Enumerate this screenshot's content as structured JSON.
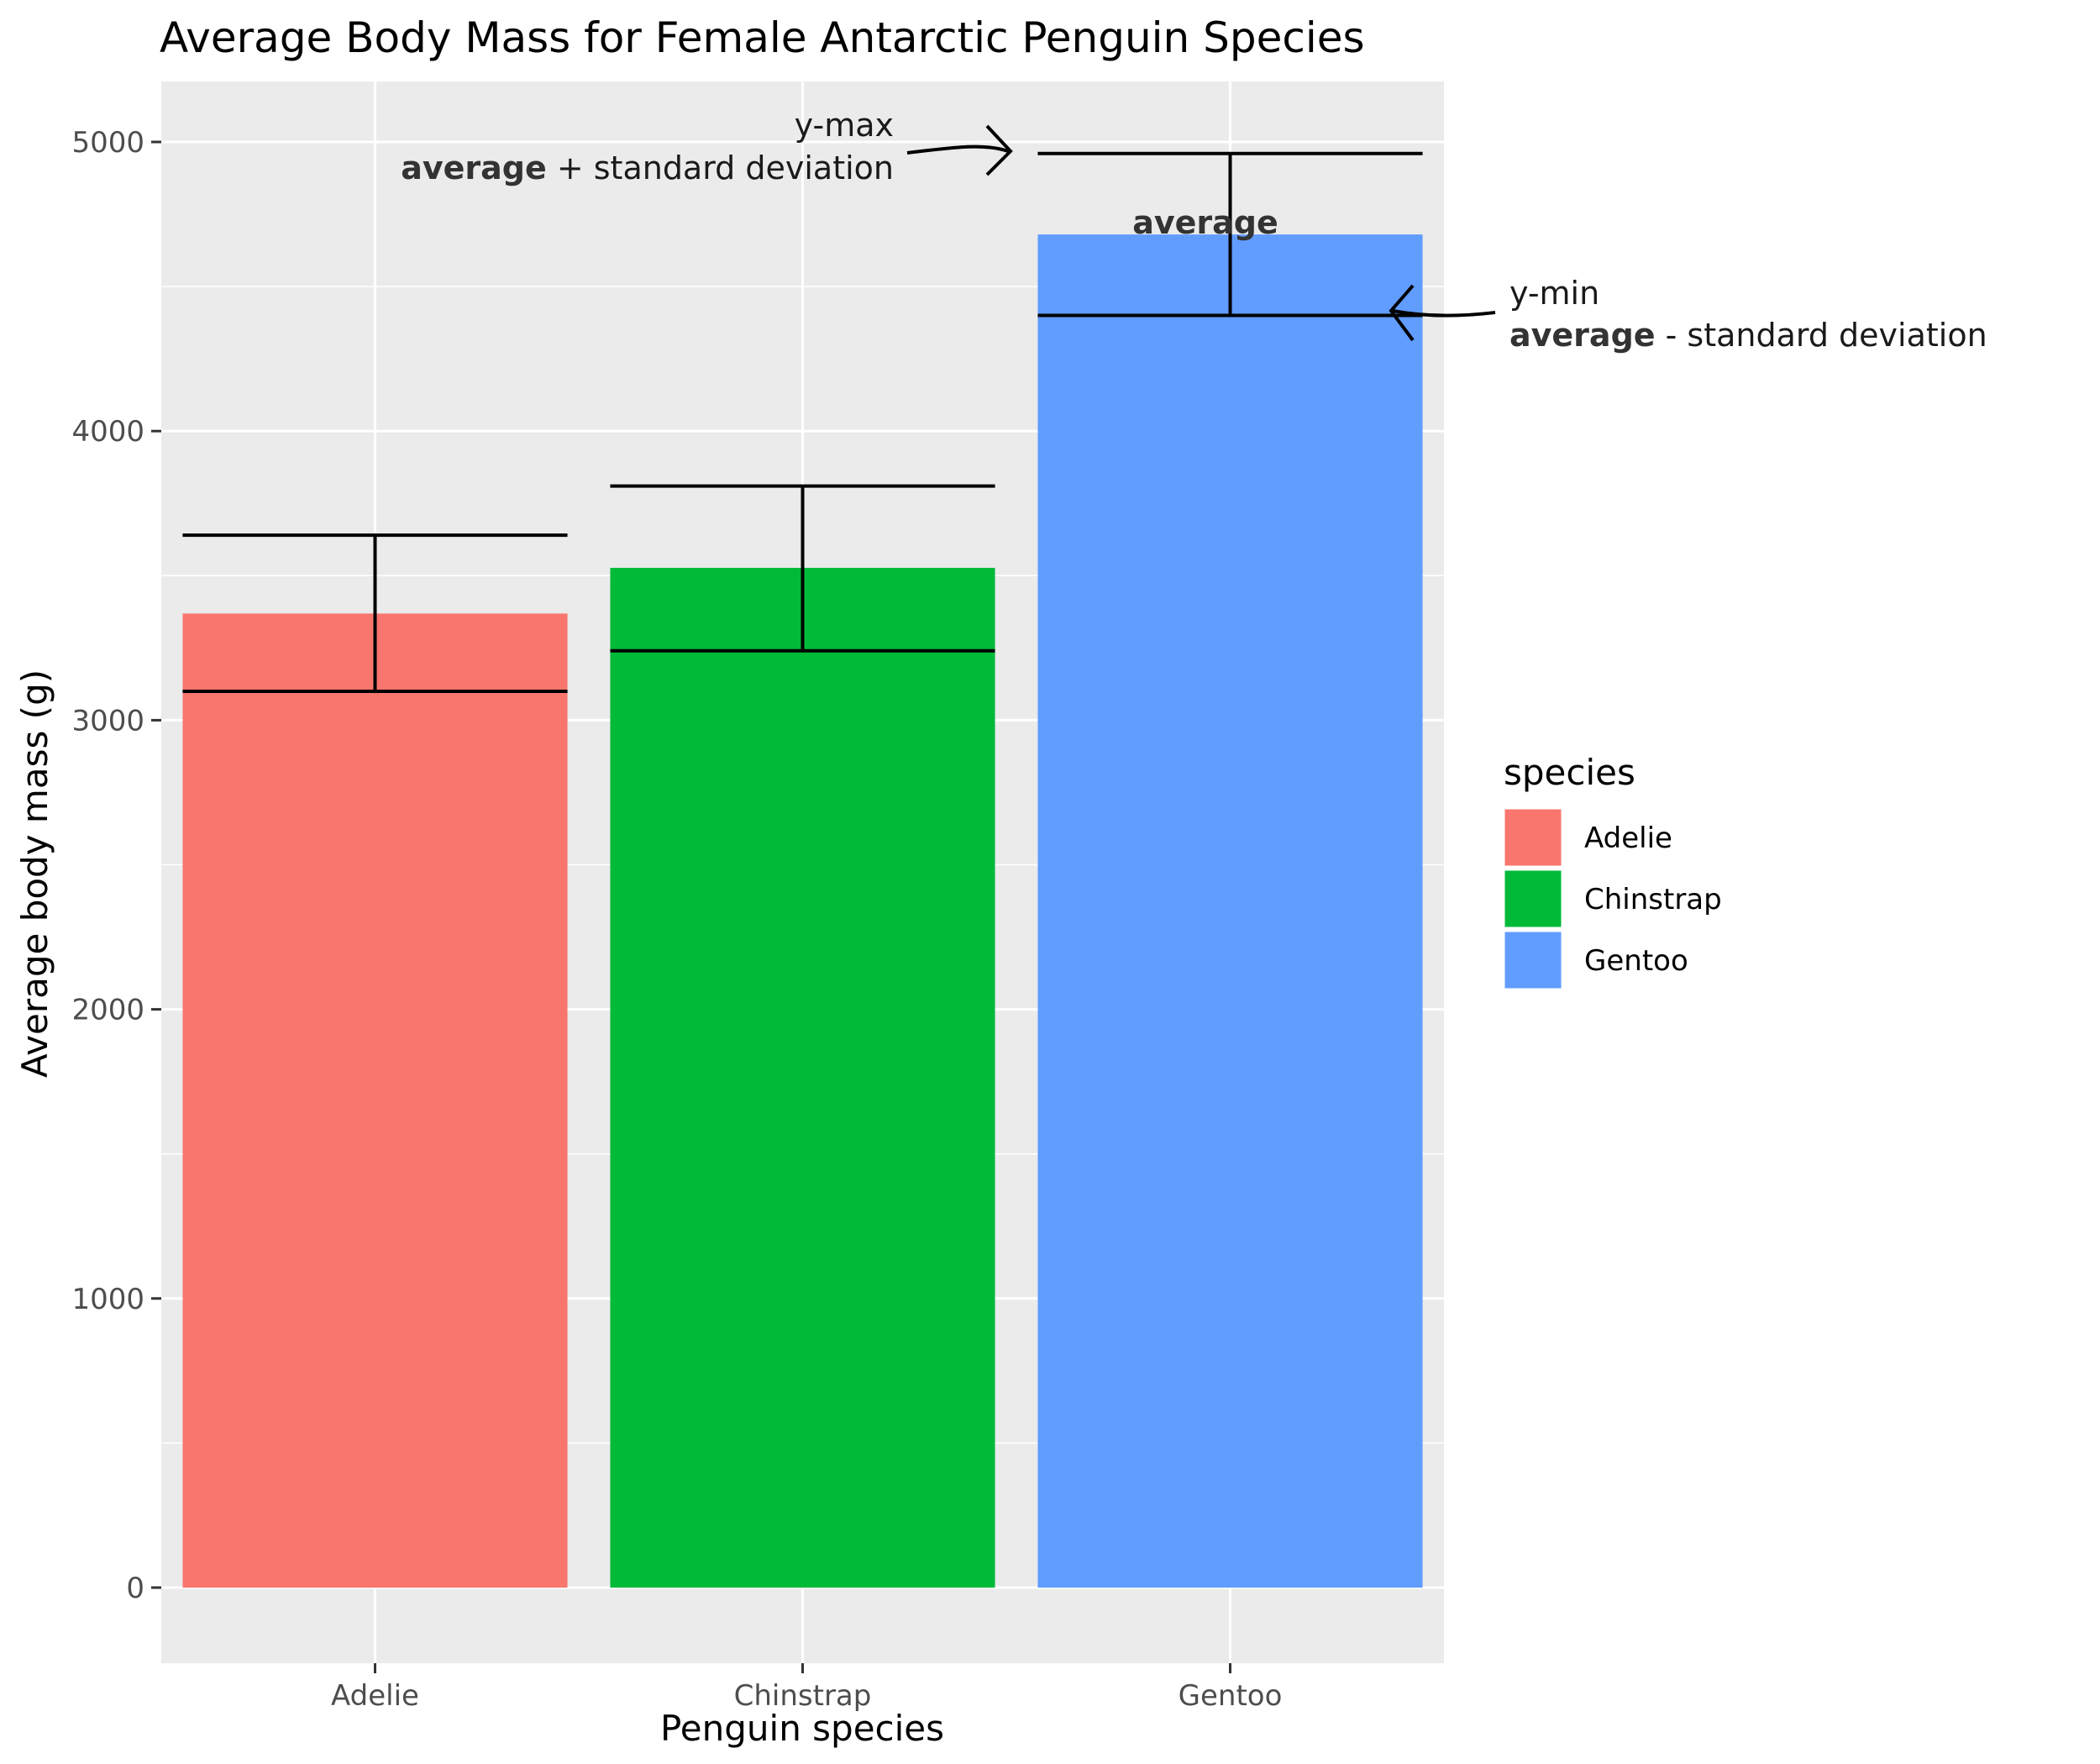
{
  "chart_data": {
    "type": "bar",
    "title": "Average Body Mass for Female Antarctic Penguin Species",
    "xlabel": "Penguin species",
    "ylabel": "Average body mass (g)",
    "categories": [
      "Adelie",
      "Chinstrap",
      "Gentoo"
    ],
    "values": [
      3369,
      3527,
      4680
    ],
    "error_bars": [
      {
        "ymin": 3100,
        "ymax": 3640
      },
      {
        "ymin": 3240,
        "ymax": 3810
      },
      {
        "ymin": 4400,
        "ymax": 4960
      }
    ],
    "colors": [
      "#F8766D",
      "#00BA38",
      "#619CFF"
    ],
    "ylim": [
      -250,
      5200
    ],
    "yticks": [
      0,
      1000,
      2000,
      3000,
      4000,
      5000
    ],
    "grid": true,
    "panel_background": "#EBEBEB",
    "legend": {
      "title": "species",
      "position": "right",
      "items": [
        "Adelie",
        "Chinstrap",
        "Gentoo"
      ]
    },
    "annotations": {
      "ymax_label": "y-max",
      "ymax_bold": "average",
      "ymax_rest": " + standard deviation",
      "average_label": "average",
      "ymin_label": "y-min",
      "ymin_bold": "average",
      "ymin_rest": " - standard deviation"
    }
  }
}
